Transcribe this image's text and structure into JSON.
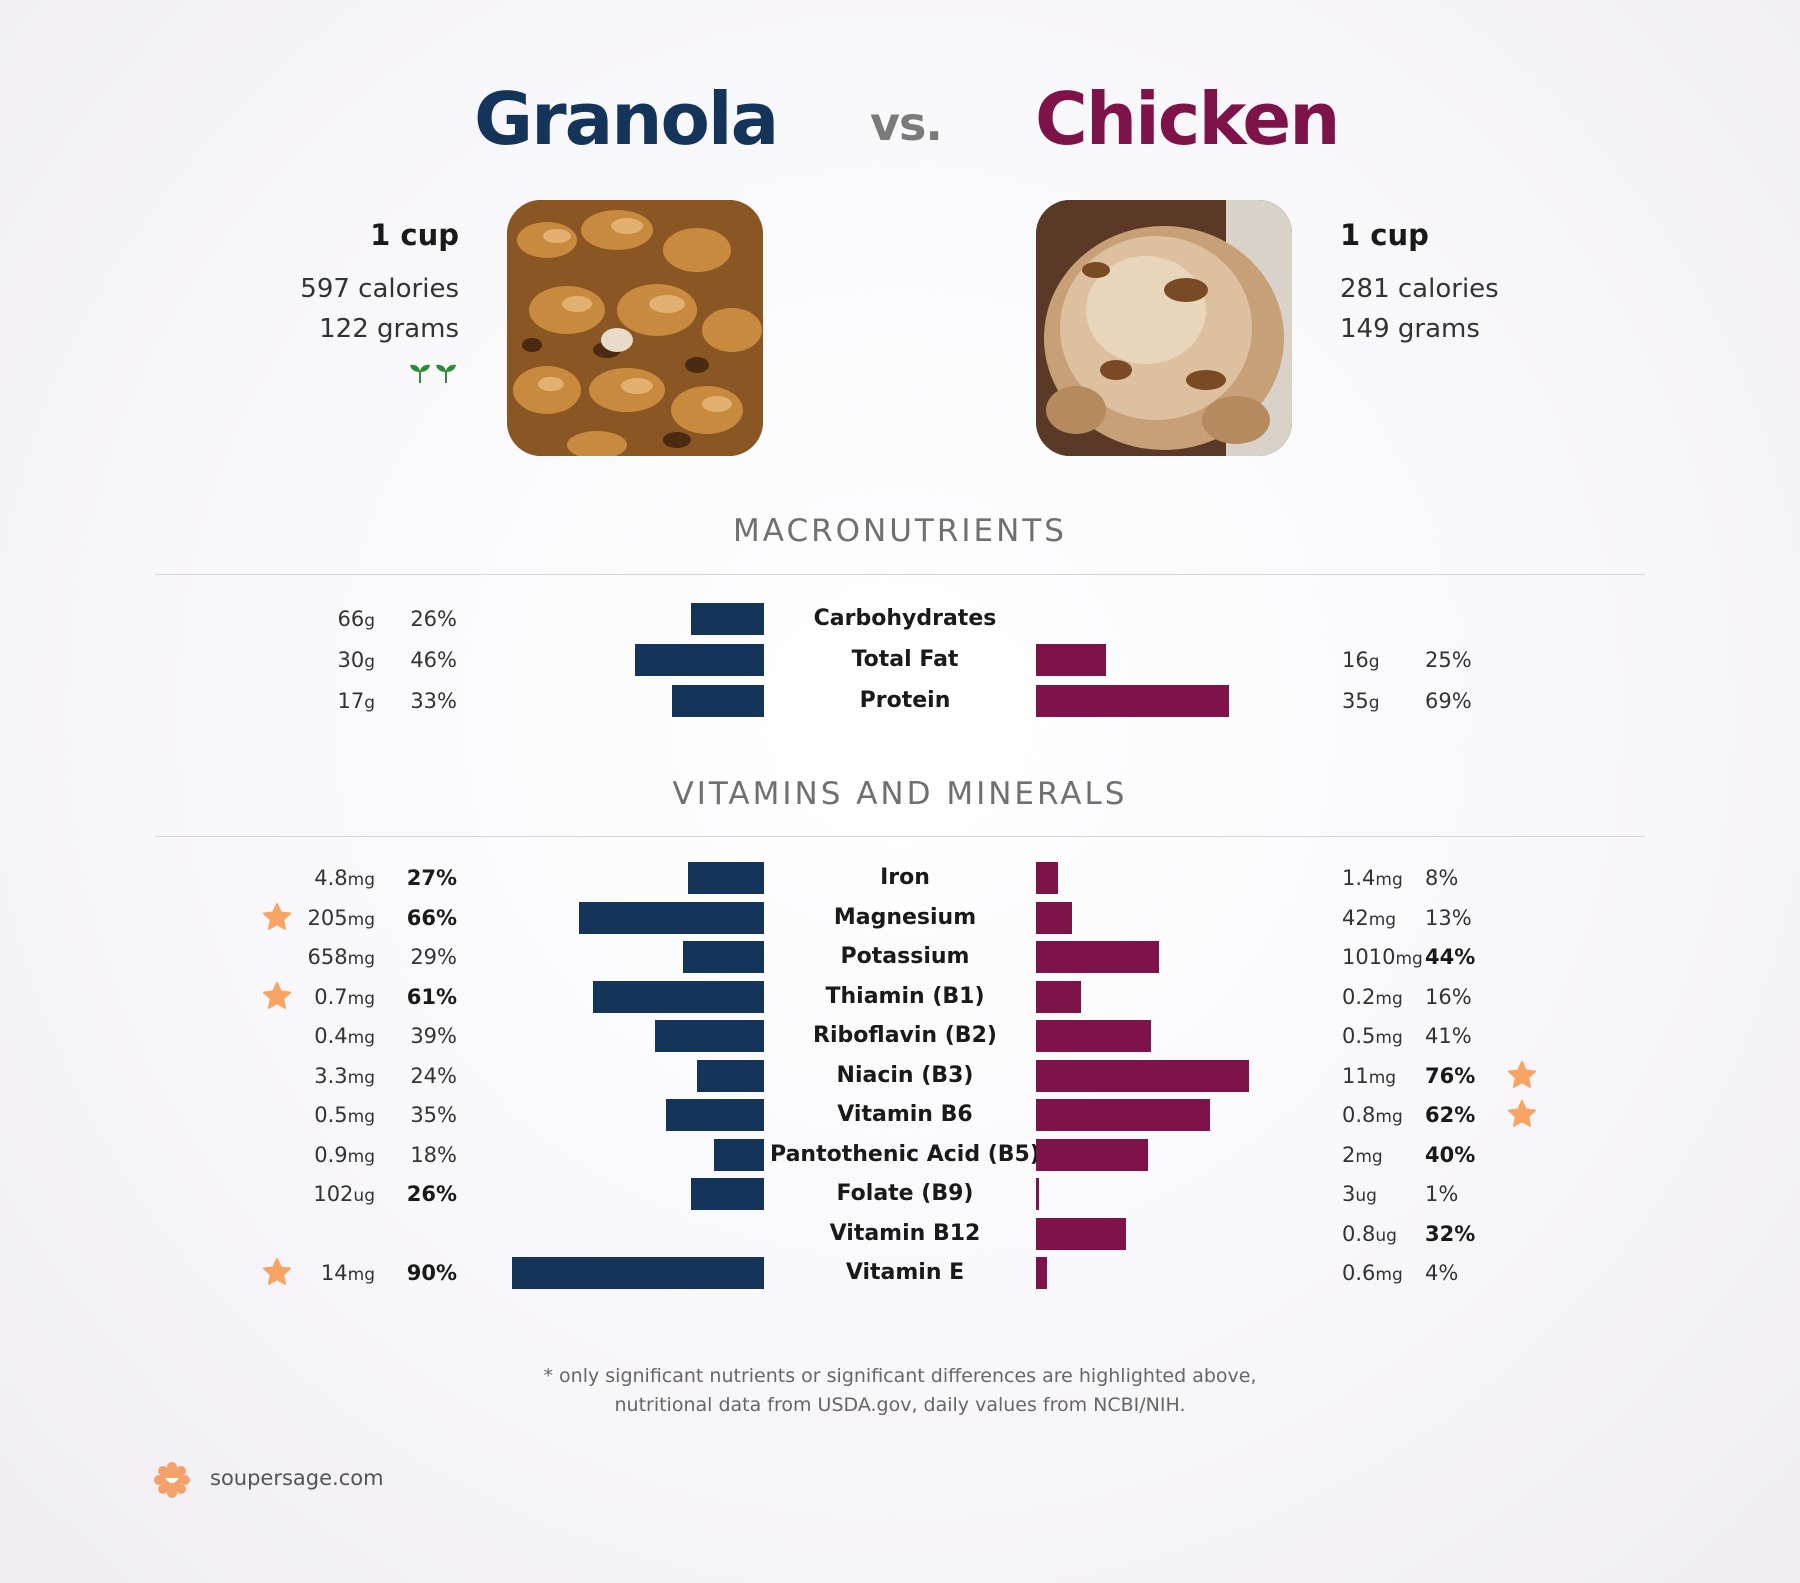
{
  "header": {
    "left_food": "Granola",
    "vs": "vs.",
    "right_food": "Chicken",
    "left_color": "#14345a",
    "right_color": "#7e1349"
  },
  "left": {
    "serving": "1 cup",
    "calories": "597 calories",
    "grams": "122 grams",
    "badge_icon": "sprout-icon"
  },
  "right": {
    "serving": "1 cup",
    "calories": "281 calories",
    "grams": "149 grams"
  },
  "sections": {
    "macros": "MACRONUTRIENTS",
    "vitamins": "VITAMINS AND MINERALS"
  },
  "chart_data": {
    "type": "bar",
    "orientation": "diverging-horizontal",
    "series": [
      {
        "name": "Granola",
        "color": "#14345a"
      },
      {
        "name": "Chicken",
        "color": "#7e1349"
      }
    ],
    "macros": [
      {
        "nutrient": "Carbohydrates",
        "left_amount": "66",
        "left_unit": "g",
        "left_pct": "26%",
        "left_value": 26,
        "right_amount": "",
        "right_unit": "",
        "right_pct": "",
        "right_value": 0
      },
      {
        "nutrient": "Total Fat",
        "left_amount": "30",
        "left_unit": "g",
        "left_pct": "46%",
        "left_value": 46,
        "right_amount": "16",
        "right_unit": "g",
        "right_pct": "25%",
        "right_value": 25
      },
      {
        "nutrient": "Protein",
        "left_amount": "17",
        "left_unit": "g",
        "left_pct": "33%",
        "left_value": 33,
        "right_amount": "35",
        "right_unit": "g",
        "right_pct": "69%",
        "right_value": 69
      }
    ],
    "vitamins": [
      {
        "nutrient": "Iron",
        "left_amount": "4.8",
        "left_unit": "mg",
        "left_pct": "27%",
        "left_value": 27,
        "left_bold": true,
        "left_star": false,
        "right_amount": "1.4",
        "right_unit": "mg",
        "right_pct": "8%",
        "right_value": 8,
        "right_bold": false,
        "right_star": false
      },
      {
        "nutrient": "Magnesium",
        "left_amount": "205",
        "left_unit": "mg",
        "left_pct": "66%",
        "left_value": 66,
        "left_bold": true,
        "left_star": true,
        "right_amount": "42",
        "right_unit": "mg",
        "right_pct": "13%",
        "right_value": 13,
        "right_bold": false,
        "right_star": false
      },
      {
        "nutrient": "Potassium",
        "left_amount": "658",
        "left_unit": "mg",
        "left_pct": "29%",
        "left_value": 29,
        "left_bold": false,
        "left_star": false,
        "right_amount": "1010",
        "right_unit": "mg",
        "right_pct": "44%",
        "right_value": 44,
        "right_bold": true,
        "right_star": false
      },
      {
        "nutrient": "Thiamin (B1)",
        "left_amount": "0.7",
        "left_unit": "mg",
        "left_pct": "61%",
        "left_value": 61,
        "left_bold": true,
        "left_star": true,
        "right_amount": "0.2",
        "right_unit": "mg",
        "right_pct": "16%",
        "right_value": 16,
        "right_bold": false,
        "right_star": false
      },
      {
        "nutrient": "Riboflavin (B2)",
        "left_amount": "0.4",
        "left_unit": "mg",
        "left_pct": "39%",
        "left_value": 39,
        "left_bold": false,
        "left_star": false,
        "right_amount": "0.5",
        "right_unit": "mg",
        "right_pct": "41%",
        "right_value": 41,
        "right_bold": false,
        "right_star": false
      },
      {
        "nutrient": "Niacin (B3)",
        "left_amount": "3.3",
        "left_unit": "mg",
        "left_pct": "24%",
        "left_value": 24,
        "left_bold": false,
        "left_star": false,
        "right_amount": "11",
        "right_unit": "mg",
        "right_pct": "76%",
        "right_value": 76,
        "right_bold": true,
        "right_star": true
      },
      {
        "nutrient": "Vitamin B6",
        "left_amount": "0.5",
        "left_unit": "mg",
        "left_pct": "35%",
        "left_value": 35,
        "left_bold": false,
        "left_star": false,
        "right_amount": "0.8",
        "right_unit": "mg",
        "right_pct": "62%",
        "right_value": 62,
        "right_bold": true,
        "right_star": true
      },
      {
        "nutrient": "Pantothenic Acid (B5)",
        "left_amount": "0.9",
        "left_unit": "mg",
        "left_pct": "18%",
        "left_value": 18,
        "left_bold": false,
        "left_star": false,
        "right_amount": "2",
        "right_unit": "mg",
        "right_pct": "40%",
        "right_value": 40,
        "right_bold": true,
        "right_star": false
      },
      {
        "nutrient": "Folate (B9)",
        "left_amount": "102",
        "left_unit": "ug",
        "left_pct": "26%",
        "left_value": 26,
        "left_bold": true,
        "left_star": false,
        "right_amount": "3",
        "right_unit": "ug",
        "right_pct": "1%",
        "right_value": 1,
        "right_bold": false,
        "right_star": false
      },
      {
        "nutrient": "Vitamin B12",
        "left_amount": "",
        "left_unit": "",
        "left_pct": "",
        "left_value": 0,
        "left_bold": false,
        "left_star": false,
        "right_amount": "0.8",
        "right_unit": "ug",
        "right_pct": "32%",
        "right_value": 32,
        "right_bold": true,
        "right_star": false
      },
      {
        "nutrient": "Vitamin E",
        "left_amount": "14",
        "left_unit": "mg",
        "left_pct": "90%",
        "left_value": 90,
        "left_bold": true,
        "left_star": true,
        "right_amount": "0.6",
        "right_unit": "mg",
        "right_pct": "4%",
        "right_value": 4,
        "right_bold": false,
        "right_star": false
      }
    ]
  },
  "footnote": {
    "line1": "* only significant nutrients or significant differences are highlighted above,",
    "line2": "nutritional data from USDA.gov, daily values from NCBI/NIH."
  },
  "brand": {
    "text": "soupersage.com",
    "logo_icon": "soupersage-logo-icon",
    "logo_color": "#f5a26a"
  },
  "star_color": "#f7a464"
}
